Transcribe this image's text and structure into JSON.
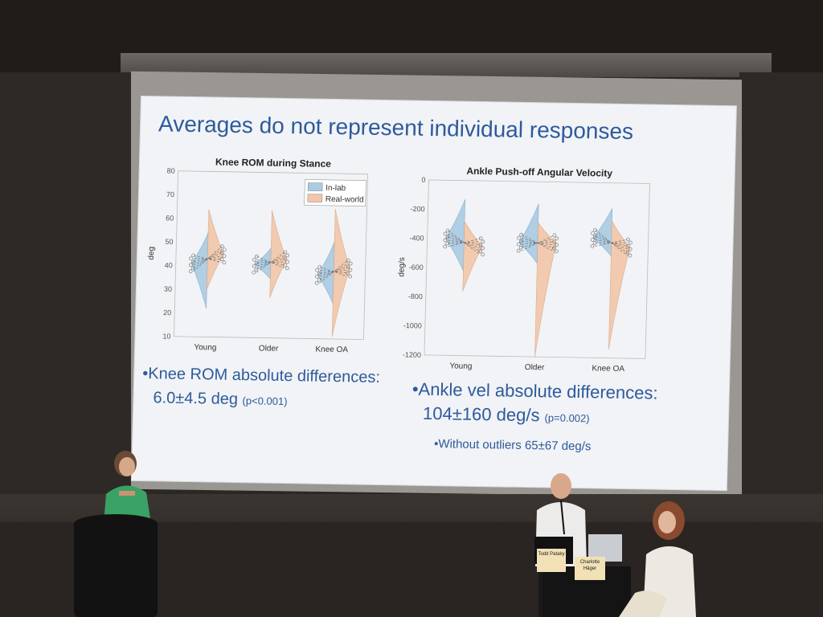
{
  "slide": {
    "title": "Averages do not represent individual responses",
    "bullets": {
      "knee": {
        "line1": "•Knee ROM absolute differences:",
        "line2": "6.0±4.5 deg",
        "stat": "(p<0.001)"
      },
      "ankle": {
        "line1": "•Ankle vel absolute differences:",
        "line2": "104±160 deg/s",
        "stat": "(p=0.002)"
      },
      "outliers": "•Without outliers 65±67 deg/s"
    }
  },
  "chart_data": [
    {
      "type": "violin",
      "title": "Knee ROM during Stance",
      "ylabel": "deg",
      "ylim": [
        10,
        80
      ],
      "yticks": [
        10,
        20,
        30,
        40,
        50,
        60,
        70,
        80
      ],
      "categories": [
        "Young",
        "Older",
        "Knee OA"
      ],
      "legend": {
        "placement": "top-right",
        "entries": [
          "In-lab",
          "Real-world"
        ]
      },
      "series": [
        {
          "name": "In-lab",
          "medians": [
            41,
            41,
            37
          ],
          "ranges": [
            [
              22,
              54
            ],
            [
              35,
              48
            ],
            [
              25,
              51
            ]
          ]
        },
        {
          "name": "Real-world",
          "medians": [
            45,
            43,
            40
          ],
          "ranges": [
            [
              30,
              64
            ],
            [
              27,
              64
            ],
            [
              11,
              65
            ]
          ]
        }
      ],
      "colors": {
        "In-lab": "#a9cbe3",
        "Real-world": "#f2c6a8"
      }
    },
    {
      "type": "violin",
      "title": "Ankle Push-off Angular Velocity",
      "ylabel": "deg/s",
      "ylim": [
        -1200,
        0
      ],
      "yticks": [
        -1200,
        -1000,
        -800,
        -600,
        -400,
        -200,
        0
      ],
      "categories": [
        "Young",
        "Older",
        "Knee OA"
      ],
      "series": [
        {
          "name": "In-lab",
          "medians": [
            -400,
            -420,
            -380
          ],
          "ranges": [
            [
              -620,
              -130
            ],
            [
              -560,
              -150
            ],
            [
              -500,
              -175
            ]
          ]
        },
        {
          "name": "Real-world",
          "medians": [
            -450,
            -420,
            -440
          ],
          "ranges": [
            [
              -760,
              -280
            ],
            [
              -1200,
              -280
            ],
            [
              -1140,
              -260
            ]
          ]
        }
      ],
      "colors": {
        "In-lab": "#a9cbe3",
        "Real-world": "#f2c6a8"
      }
    }
  ],
  "scene": {
    "nameplates": [
      "Todd Pataky",
      "Charlotte Häger"
    ]
  }
}
